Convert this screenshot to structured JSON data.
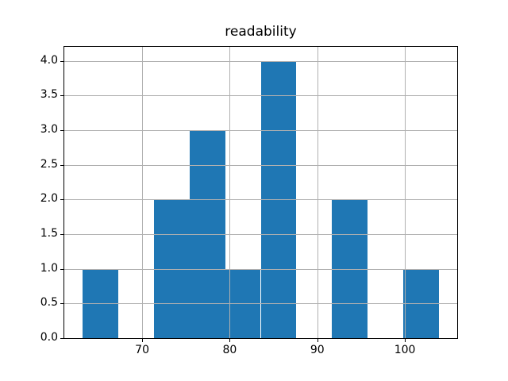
{
  "figure": {
    "background_color": "#ffffff"
  },
  "chart_data": {
    "type": "bar",
    "subtype": "histogram",
    "title": "readability",
    "xlabel": "",
    "ylabel": "",
    "bin_edges": [
      63.18,
      67.25,
      71.32,
      75.4,
      79.47,
      83.54,
      87.61,
      91.69,
      95.76,
      99.83,
      103.9
    ],
    "counts": [
      1,
      0,
      2,
      3,
      1,
      4,
      0,
      2,
      0,
      1
    ],
    "xlim": [
      61.11,
      105.97
    ],
    "ylim": [
      0,
      4.2
    ],
    "xticks": [
      70,
      80,
      90,
      100
    ],
    "xtick_labels": [
      "70",
      "80",
      "90",
      "100"
    ],
    "yticks": [
      0.0,
      0.5,
      1.0,
      1.5,
      2.0,
      2.5,
      3.0,
      3.5,
      4.0
    ],
    "ytick_labels": [
      "0.0",
      "0.5",
      "1.0",
      "1.5",
      "2.0",
      "2.5",
      "3.0",
      "3.5",
      "4.0"
    ],
    "grid": true,
    "grid_above_bars": true,
    "legend": null,
    "bar_color": "#1f77b4",
    "grid_color": "#b0b0b0",
    "spine_color": "#000000",
    "text_color": "#000000"
  }
}
